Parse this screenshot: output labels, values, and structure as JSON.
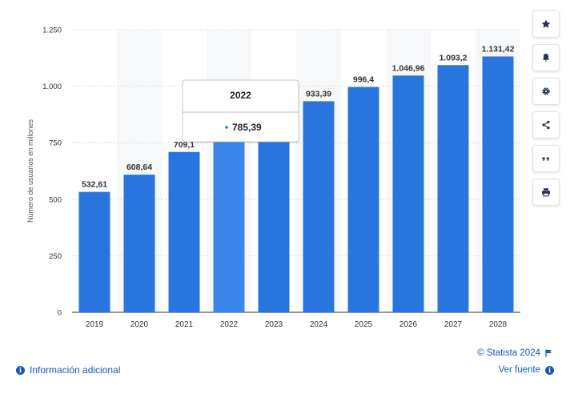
{
  "chart_data": {
    "type": "bar",
    "ylabel": "Número de usuarios en millones",
    "ylim": [
      0,
      1250
    ],
    "yticks": [
      0,
      250,
      500,
      750,
      1000,
      1250
    ],
    "ytick_labels": [
      "0",
      "250",
      "500",
      "750",
      "1.000",
      "1.250"
    ],
    "categories": [
      "2019",
      "2020",
      "2021",
      "2022",
      "2023",
      "2024",
      "2025",
      "2026",
      "2027",
      "2028"
    ],
    "values": [
      532.61,
      608.64,
      709.1,
      785.39,
      860.12,
      933.39,
      996.4,
      1046.96,
      1093.2,
      1131.42
    ],
    "value_labels": [
      "532,61",
      "608,64",
      "709,1",
      "",
      "",
      "933,39",
      "996,4",
      "1.046,96",
      "1.093,2",
      "1.131,42"
    ],
    "bar_color": "#2876dd",
    "highlight_color": "#3a86ea",
    "highlight_index": 3,
    "grid": true,
    "tooltip": {
      "title": "2022",
      "value": "785,39"
    }
  },
  "toolbar": [
    {
      "icon": "star-icon"
    },
    {
      "icon": "bell-icon"
    },
    {
      "icon": "gear-icon"
    },
    {
      "icon": "share-icon"
    },
    {
      "icon": "quote-icon"
    },
    {
      "icon": "print-icon"
    }
  ],
  "footer": {
    "additional_info": "Información adicional",
    "copyright": "© Statista 2024",
    "source": "Ver fuente"
  },
  "colors": {
    "link": "#1a56b8",
    "stripe": "#f7f8fa",
    "grid": "#d5d5d5"
  }
}
